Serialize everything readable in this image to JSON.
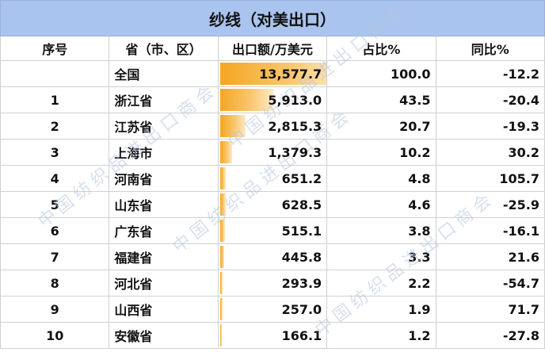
{
  "title": "纱线（对美出口）",
  "headers": {
    "rank": "序号",
    "province": "省（市、区）",
    "value": "出口额/万美元",
    "share": "占比%",
    "yoy": "同比%"
  },
  "rows": [
    {
      "rank": "",
      "province": "全国",
      "value": "13,577.7",
      "value_num": 13577.7,
      "share": "100.0",
      "yoy": "-12.2"
    },
    {
      "rank": "1",
      "province": "浙江省",
      "value": "5,913.0",
      "value_num": 5913.0,
      "share": "43.5",
      "yoy": "-20.4"
    },
    {
      "rank": "2",
      "province": "江苏省",
      "value": "2,815.3",
      "value_num": 2815.3,
      "share": "20.7",
      "yoy": "-19.3"
    },
    {
      "rank": "3",
      "province": "上海市",
      "value": "1,379.3",
      "value_num": 1379.3,
      "share": "10.2",
      "yoy": "30.2"
    },
    {
      "rank": "4",
      "province": "河南省",
      "value": "651.2",
      "value_num": 651.2,
      "share": "4.8",
      "yoy": "105.7"
    },
    {
      "rank": "5",
      "province": "山东省",
      "value": "628.5",
      "value_num": 628.5,
      "share": "4.6",
      "yoy": "-25.9"
    },
    {
      "rank": "6",
      "province": "广东省",
      "value": "515.1",
      "value_num": 515.1,
      "share": "3.8",
      "yoy": "-16.1"
    },
    {
      "rank": "7",
      "province": "福建省",
      "value": "445.8",
      "value_num": 445.8,
      "share": "3.3",
      "yoy": "21.6"
    },
    {
      "rank": "8",
      "province": "河北省",
      "value": "293.9",
      "value_num": 293.9,
      "share": "2.2",
      "yoy": "-54.7"
    },
    {
      "rank": "9",
      "province": "山西省",
      "value": "257.0",
      "value_num": 257.0,
      "share": "1.9",
      "yoy": "71.7"
    },
    {
      "rank": "10",
      "province": "安徽省",
      "value": "166.1",
      "value_num": 166.1,
      "share": "1.2",
      "yoy": "-27.8"
    }
  ],
  "watermark": "中国纺织品进出口商会",
  "colors": {
    "title_bg": "#a9c4ee",
    "bar": "#f5a623",
    "grid": "#d0d0d0"
  }
}
